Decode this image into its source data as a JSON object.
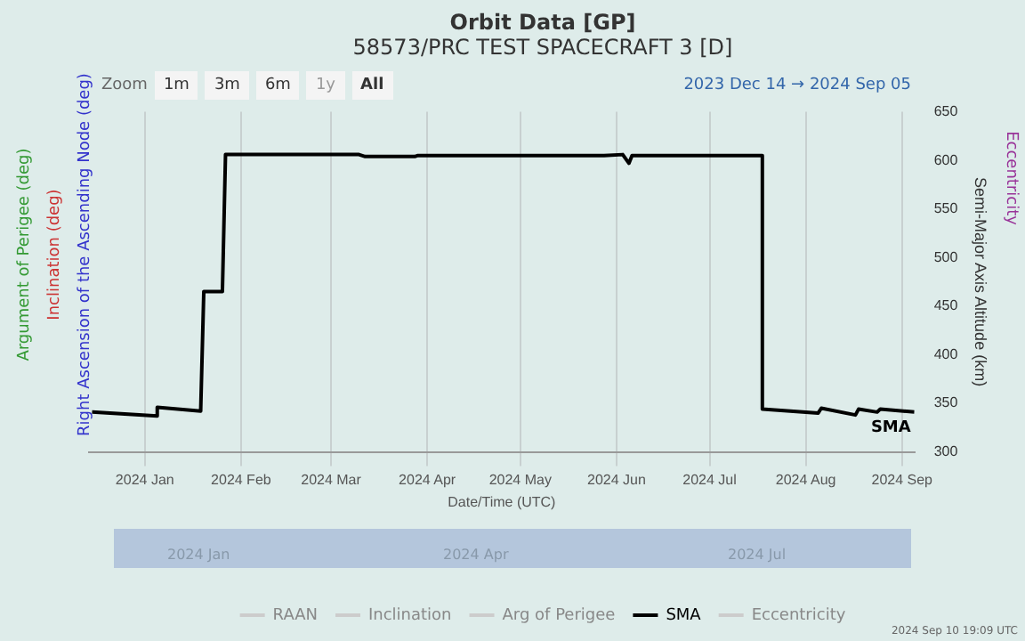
{
  "chart_data": {
    "type": "line",
    "title": "Orbit Data [GP]",
    "subtitle": "58573/PRC TEST SPACECRAFT 3 [D]",
    "xlabel": "Date/Time (UTC)",
    "y2label": "Semi-Major Axis Altitude (km)",
    "x": [
      "2023-12-15",
      "2024-01-05",
      "2024-01-05",
      "2024-01-19",
      "2024-01-20",
      "2024-01-26",
      "2024-01-27",
      "2024-03-10",
      "2024-03-12",
      "2024-03-28",
      "2024-03-29",
      "2024-05-28",
      "2024-06-03",
      "2024-06-05",
      "2024-06-06",
      "2024-07-18",
      "2024-07-18",
      "2024-08-05",
      "2024-08-06",
      "2024-08-17",
      "2024-08-18",
      "2024-08-24",
      "2024-08-25",
      "2024-09-05"
    ],
    "series": [
      {
        "name": "RAAN",
        "color": "#cccccc",
        "values": [
          null,
          null,
          null,
          null,
          null,
          null,
          null,
          null,
          null,
          null,
          null,
          null,
          null,
          null,
          null,
          null,
          null,
          null,
          null,
          null,
          null,
          null,
          null,
          null
        ]
      },
      {
        "name": "Inclination",
        "color": "#cccccc",
        "values": [
          null,
          null,
          null,
          null,
          null,
          null,
          null,
          null,
          null,
          null,
          null,
          null,
          null,
          null,
          null,
          null,
          null,
          null,
          null,
          null,
          null,
          null,
          null,
          null
        ]
      },
      {
        "name": "Arg of Perigee",
        "color": "#cccccc",
        "values": [
          null,
          null,
          null,
          null,
          null,
          null,
          null,
          null,
          null,
          null,
          null,
          null,
          null,
          null,
          null,
          null,
          null,
          null,
          null,
          null,
          null,
          null,
          null,
          null
        ]
      },
      {
        "name": "SMA",
        "color": "#000000",
        "axis": "y2",
        "values": [
          341,
          337,
          346,
          342,
          465,
          465,
          606,
          606,
          604,
          604,
          605,
          605,
          606,
          597,
          605,
          605,
          344,
          340,
          345,
          338,
          344,
          341,
          344,
          341
        ]
      },
      {
        "name": "Eccentricity",
        "color": "#cccccc",
        "values": [
          null,
          null,
          null,
          null,
          null,
          null,
          null,
          null,
          null,
          null,
          null,
          null,
          null,
          null,
          null,
          null,
          null,
          null,
          null,
          null,
          null,
          null,
          null,
          null
        ]
      }
    ],
    "xlim": [
      "2023-12-14",
      "2024-09-05"
    ],
    "xticks": [
      {
        "value": "2024-01-01",
        "label": "2024 Jan"
      },
      {
        "value": "2024-02-01",
        "label": "2024 Feb"
      },
      {
        "value": "2024-03-01",
        "label": "2024 Mar"
      },
      {
        "value": "2024-04-01",
        "label": "2024 Apr"
      },
      {
        "value": "2024-05-01",
        "label": "2024 May"
      },
      {
        "value": "2024-06-01",
        "label": "2024 Jun"
      },
      {
        "value": "2024-07-01",
        "label": "2024 Jul"
      },
      {
        "value": "2024-08-01",
        "label": "2024 Aug"
      },
      {
        "value": "2024-09-01",
        "label": "2024 Sep"
      }
    ],
    "y2lim": [
      300,
      650
    ],
    "y2ticks": [
      300,
      350,
      400,
      450,
      500,
      550,
      600,
      650
    ],
    "grid": "x",
    "legend": "bottom",
    "marker": "none",
    "line_style": "solid",
    "annotations": [
      "Right Ascension of the Ascending Node (deg)",
      "Inclination (deg)",
      "Argument of Perigee (deg)",
      "Eccentricity",
      "Zoom",
      "1m",
      "3m",
      "6m",
      "1y",
      "All",
      "2023 Dec 14 → 2024 Sep 05",
      "2024 Jan",
      "2024 Apr",
      "2024 Jul",
      "2024 Sep 10 19:09 UTC"
    ]
  }
}
